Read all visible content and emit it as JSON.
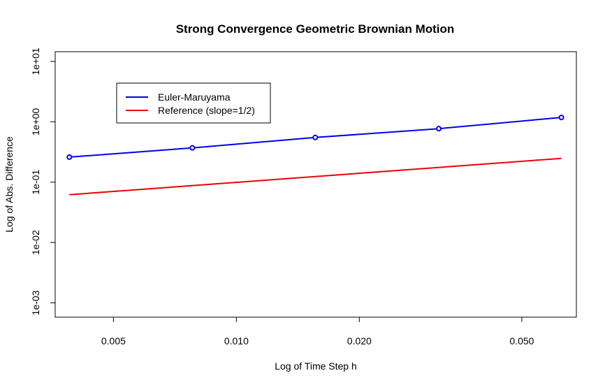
{
  "chart_data": {
    "type": "line",
    "title": "Strong Convergence Geometric Brownian Motion",
    "xlabel": "Log of Time Step h",
    "ylabel": "Log of Abs. Difference",
    "x_scale": "log",
    "y_scale": "log",
    "xlim": [
      0.0036,
      0.068
    ],
    "ylim": [
      0.00058,
      14.5
    ],
    "x_ticks": [
      0.005,
      0.01,
      0.02,
      0.05
    ],
    "x_tick_labels": [
      "0.005",
      "0.010",
      "0.020",
      "0.050"
    ],
    "y_ticks": [
      0.001,
      0.01,
      0.1,
      1,
      10
    ],
    "y_tick_labels": [
      "1e-03",
      "1e-02",
      "1e-01",
      "1e+00",
      "1e+01"
    ],
    "grid": false,
    "legend_position": "top-left",
    "series": [
      {
        "name": "Euler-Maruyama",
        "color": "#0000ee",
        "markers": true,
        "x": [
          0.0039,
          0.0078,
          0.0156,
          0.0313,
          0.0625
        ],
        "y": [
          0.26,
          0.37,
          0.55,
          0.77,
          1.18
        ]
      },
      {
        "name": "Reference (slope=1/2)",
        "color": "#ee0000",
        "markers": false,
        "x": [
          0.0039,
          0.0625
        ],
        "y": [
          0.062,
          0.248
        ]
      }
    ]
  }
}
